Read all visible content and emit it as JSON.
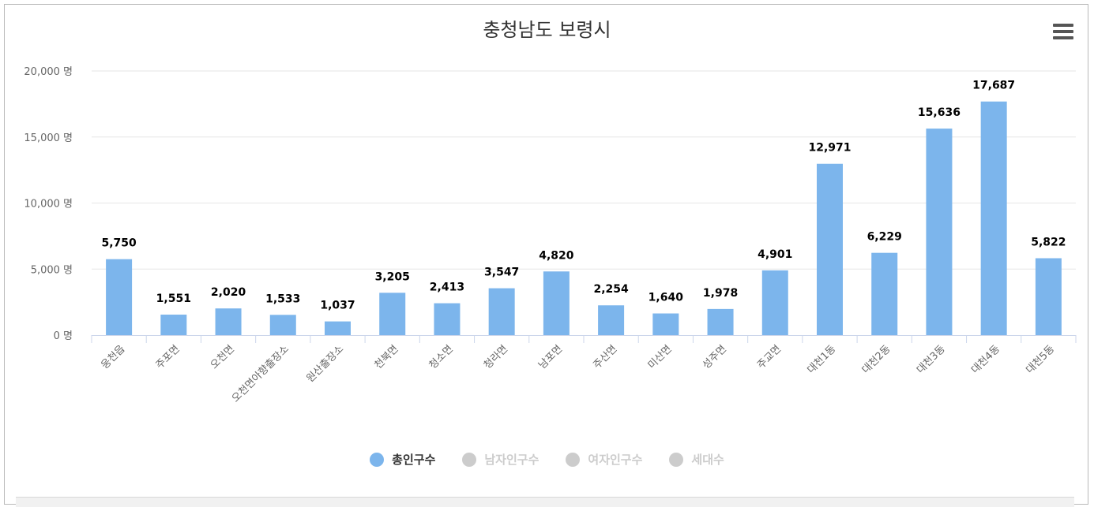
{
  "chart_data": {
    "type": "bar",
    "title": "충청남도 보령시",
    "categories": [
      "웅천읍",
      "주포면",
      "오천면",
      "오천면아향출장소",
      "원산출장소",
      "천북면",
      "청소면",
      "청라면",
      "남포면",
      "주산면",
      "미산면",
      "성주면",
      "주교면",
      "대천1동",
      "대천2동",
      "대천3동",
      "대천4동",
      "대천5동"
    ],
    "series": [
      {
        "name": "총인구수",
        "values": [
          5750,
          1551,
          2020,
          1533,
          1037,
          3205,
          2413,
          3547,
          4820,
          2254,
          1640,
          1978,
          4901,
          12971,
          6229,
          15636,
          17687,
          5822
        ]
      }
    ],
    "value_labels": [
      "5,750",
      "1,551",
      "2,020",
      "1,533",
      "1,037",
      "3,205",
      "2,413",
      "3,547",
      "4,820",
      "2,254",
      "1,640",
      "1,978",
      "4,901",
      "12,971",
      "6,229",
      "15,636",
      "17,687",
      "5,822"
    ],
    "y_ticks": [
      0,
      5000,
      10000,
      15000,
      20000
    ],
    "y_tick_labels": [
      "0 명",
      "5,000 명",
      "10,000 명",
      "15,000 명",
      "20,000 명"
    ],
    "ylim": [
      0,
      20000
    ],
    "grid": true,
    "legend_placement": "bottom-center",
    "bar_color": "#7cb5ec"
  },
  "legend": [
    {
      "label": "총인구수",
      "color": "#7cb5ec",
      "active": true
    },
    {
      "label": "남자인구수",
      "color": "#cccccc",
      "active": false
    },
    {
      "label": "여자인구수",
      "color": "#cccccc",
      "active": false
    },
    {
      "label": "세대수",
      "color": "#cccccc",
      "active": false
    }
  ],
  "menu_icon": "hamburger-menu-icon"
}
